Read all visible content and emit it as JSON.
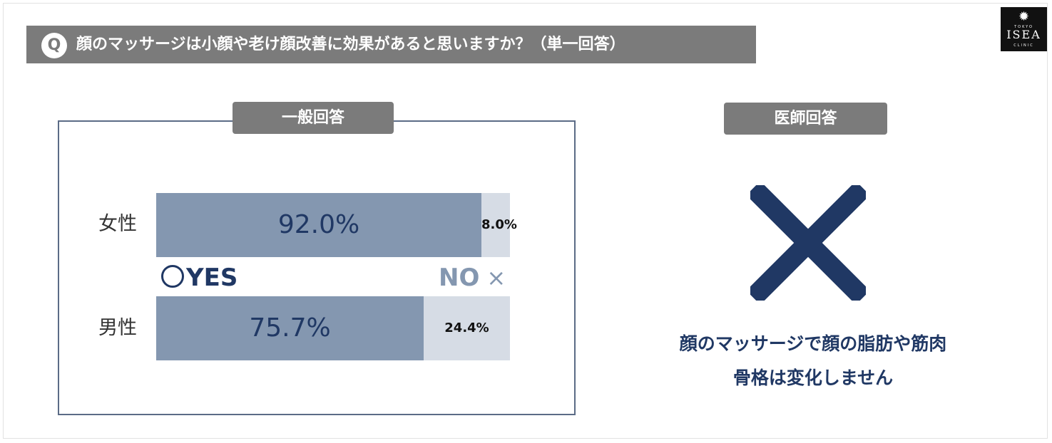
{
  "header": {
    "q_badge": "Q",
    "question": "顔のマッサージは小顔や老け顔改善に効果があると思いますか？（単一回答）"
  },
  "logo": {
    "top": "TOKYO",
    "main": "ISEA",
    "sub": "CLINIC"
  },
  "general": {
    "title": "一般回答"
  },
  "doctor": {
    "title": "医師回答",
    "answer_icon": "x-mark-icon",
    "line1": "顔のマッサージで顔の脂肪や筋肉",
    "line2": "骨格は変化しません"
  },
  "legend": {
    "yes": "YES",
    "no": "NO",
    "yes_icon": "circle-icon",
    "no_icon": "cross-icon",
    "no_mark": "×"
  },
  "colors": {
    "yes": "#8497b0",
    "no": "#d6dce5",
    "accent": "#203864",
    "header": "#7b7b7b"
  },
  "chart_data": {
    "type": "bar",
    "orientation": "horizontal",
    "stacked": true,
    "percent": true,
    "categories": [
      "女性",
      "男性"
    ],
    "series": [
      {
        "name": "YES",
        "values": [
          92.0,
          75.7
        ],
        "labels": [
          "92.0%",
          "75.7%"
        ]
      },
      {
        "name": "NO",
        "values": [
          8.0,
          24.4
        ],
        "labels": [
          "8.0%",
          "24.4%"
        ]
      }
    ]
  }
}
